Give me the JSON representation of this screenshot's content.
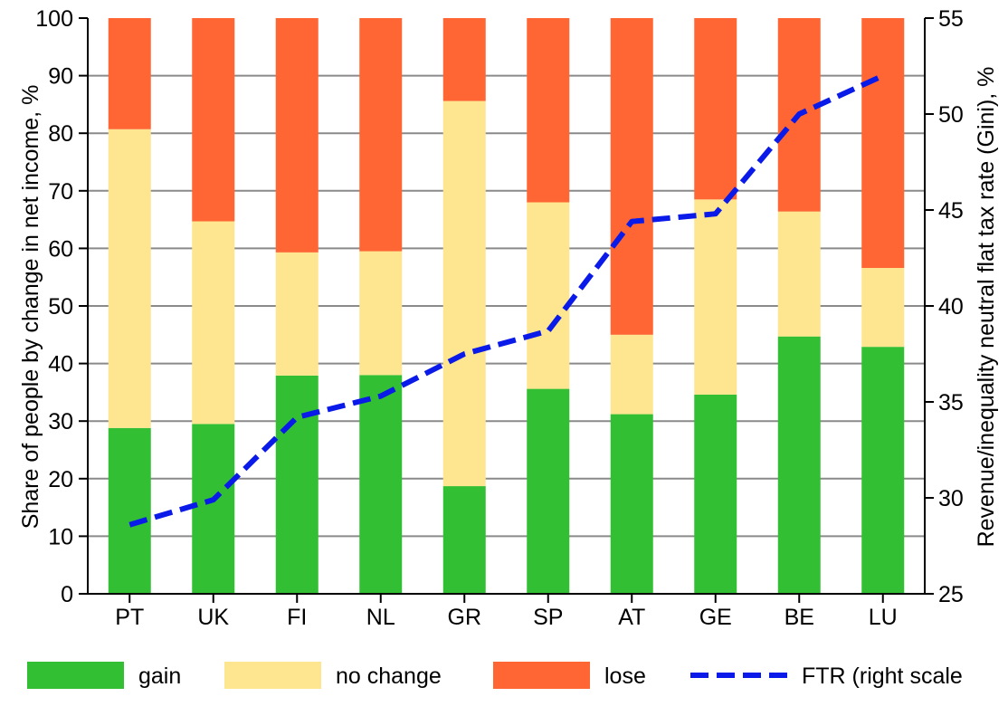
{
  "chart_data": {
    "type": "bar",
    "stacked": true,
    "categories": [
      "PT",
      "UK",
      "FI",
      "NL",
      "GR",
      "SP",
      "AT",
      "GE",
      "BE",
      "LU"
    ],
    "series": [
      {
        "name": "gain",
        "color": "#33bf33",
        "values": [
          28.8,
          29.5,
          37.9,
          38.0,
          18.7,
          35.6,
          31.2,
          34.6,
          44.7,
          42.9
        ]
      },
      {
        "name": "no change",
        "color": "#fde68f",
        "values": [
          51.9,
          35.2,
          21.4,
          21.5,
          66.9,
          32.4,
          13.8,
          33.9,
          21.7,
          13.7
        ]
      },
      {
        "name": "lose",
        "color": "#ff6633",
        "values": [
          19.3,
          35.3,
          40.7,
          40.5,
          14.4,
          32.0,
          55.0,
          31.5,
          33.6,
          43.4
        ]
      }
    ],
    "line_series": {
      "name": "FTR (right scale",
      "color": "#0a1ae8",
      "axis": "right",
      "values": [
        28.6,
        29.9,
        34.2,
        35.3,
        37.5,
        38.7,
        44.4,
        44.8,
        50.0,
        52.0
      ]
    },
    "ylabel": "Share of people by change in net income, %",
    "y2label": "Revenue/inequality neutral flat tax rate (Gini), %",
    "ylim": [
      0,
      100
    ],
    "y2lim": [
      25,
      55
    ],
    "yticks": [
      "0",
      "10",
      "20",
      "30",
      "40",
      "50",
      "60",
      "70",
      "80",
      "90",
      "100"
    ],
    "y2ticks": [
      "25",
      "30",
      "35",
      "40",
      "45",
      "50",
      "55"
    ],
    "grid": true,
    "legend_position": "bottom"
  }
}
